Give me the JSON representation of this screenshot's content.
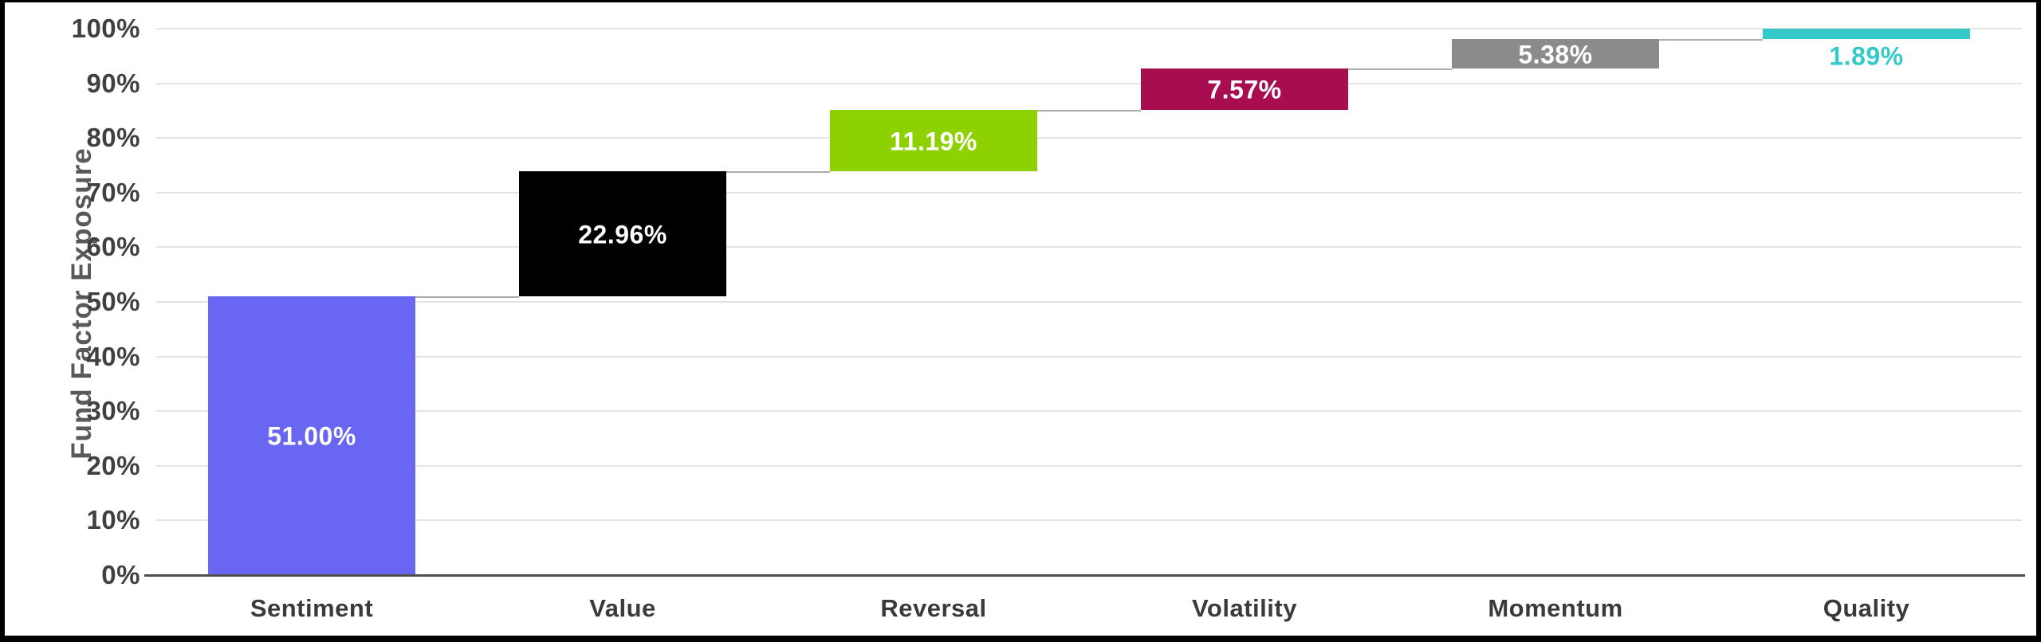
{
  "chart_data": {
    "type": "bar",
    "variant": "waterfall",
    "title": "",
    "xlabel": "",
    "ylabel": "Fund Factor Exposure",
    "ylim": [
      0,
      100
    ],
    "grid": true,
    "legend": false,
    "categories": [
      "Sentiment",
      "Value",
      "Reversal",
      "Volatility",
      "Momentum",
      "Quality"
    ],
    "values": [
      51.0,
      22.96,
      11.19,
      7.57,
      5.38,
      1.89
    ],
    "value_labels": [
      "51.00%",
      "22.96%",
      "11.19%",
      "7.57%",
      "5.38%",
      "1.89%"
    ],
    "cumulative": [
      51.0,
      73.96,
      85.15,
      92.72,
      98.1,
      99.99
    ],
    "bar_colors": [
      "#6966F2",
      "#000000",
      "#8DD100",
      "#A80D4F",
      "#8B8B8B",
      "#35C9CA"
    ],
    "inside_label_color": "#FFFFFF",
    "yticks": [
      {
        "v": 0,
        "label": "0%"
      },
      {
        "v": 10,
        "label": "10%"
      },
      {
        "v": 20,
        "label": "20%"
      },
      {
        "v": 30,
        "label": "30%"
      },
      {
        "v": 40,
        "label": "40%"
      },
      {
        "v": 50,
        "label": "50%"
      },
      {
        "v": 60,
        "label": "60%"
      },
      {
        "v": 70,
        "label": "70%"
      },
      {
        "v": 80,
        "label": "80%"
      },
      {
        "v": 90,
        "label": "90%"
      },
      {
        "v": 100,
        "label": "100%"
      }
    ]
  },
  "style_colors": {
    "background": "#FFFFFF",
    "frame": "#000000",
    "grid": "#E4E4E4",
    "axis_line": "#4D4D4E",
    "connector": "#ABABAB",
    "tick_text": "#404041",
    "axis_title_text": "#58595B"
  }
}
